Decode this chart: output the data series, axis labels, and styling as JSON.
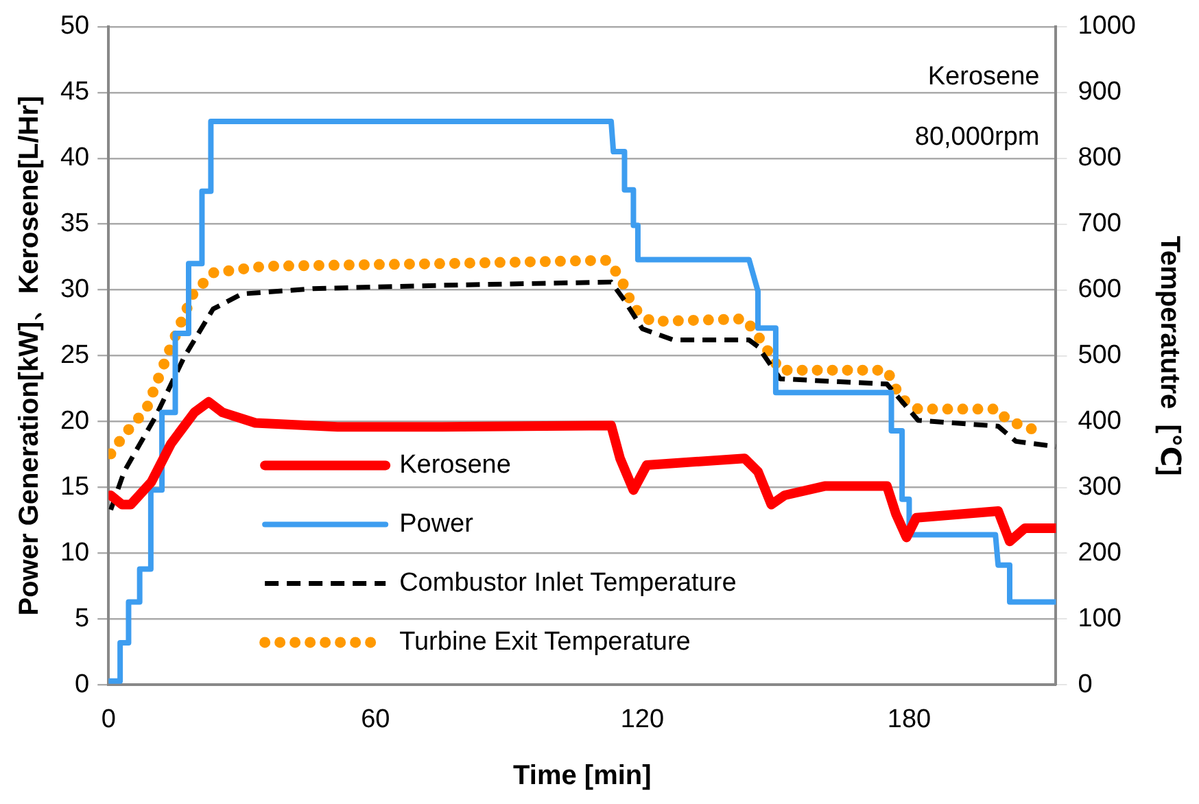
{
  "chart_data": {
    "type": "line",
    "xlabel": "Time [min]",
    "ylabel": "Power Generation[kW]、Kerosene[L/Hr]",
    "y2label": "Temperatutre  [℃]",
    "xlim": [
      0,
      213
    ],
    "xticks": [
      0,
      60,
      120,
      180
    ],
    "ylim": [
      0,
      50
    ],
    "yticks": [
      0,
      5,
      10,
      15,
      20,
      25,
      30,
      35,
      40,
      45,
      50
    ],
    "y2lim": [
      0,
      1000
    ],
    "y2ticks": [
      0,
      100,
      200,
      300,
      400,
      500,
      600,
      700,
      800,
      900,
      1000
    ],
    "grid": "y",
    "legend": "bottom left",
    "marker": "none",
    "annotations": [
      "Kerosene",
      "80,000rpm"
    ],
    "series": [
      {
        "name": "Kerosene",
        "color": "#ff0000",
        "line_style": "solid",
        "x": [
          0.5,
          3,
          5,
          9.6,
          14,
          19.3,
          22.5,
          25.6,
          33,
          51.5,
          75,
          113,
          115,
          118,
          121,
          143,
          146,
          149,
          152,
          161,
          175,
          177,
          179.4,
          181.6,
          200,
          202.6,
          206,
          213
        ],
        "values": [
          14.4,
          13.7,
          13.7,
          15.4,
          18.3,
          20.7,
          21.5,
          20.7,
          19.9,
          19.6,
          19.6,
          19.7,
          17.2,
          14.8,
          16.7,
          17.2,
          16.2,
          13.7,
          14.4,
          15.1,
          15.1,
          13,
          11.2,
          12.7,
          13.2,
          10.9,
          11.9,
          11.9
        ]
      },
      {
        "name": "Power",
        "color": "#3d9df0",
        "line_style": "solid",
        "x": [
          0.3,
          2.6,
          2.6,
          4.5,
          4.5,
          7,
          7,
          9.5,
          9.5,
          12,
          12,
          15,
          15,
          18,
          18,
          21,
          21,
          23,
          23,
          113,
          113.5,
          116,
          116,
          118,
          118,
          119,
          119,
          144,
          146,
          146,
          150,
          150,
          175,
          176,
          176,
          178.4,
          178.4,
          180,
          180,
          199.4,
          200,
          202.6,
          202.6,
          213
        ],
        "values": [
          0.3,
          0.3,
          3.2,
          3.2,
          6.3,
          6.3,
          8.8,
          8.8,
          14.8,
          14.8,
          20.7,
          20.7,
          26.7,
          26.7,
          32,
          32,
          37.5,
          37.5,
          42.8,
          42.8,
          40.5,
          40.5,
          37.6,
          37.6,
          34.9,
          34.9,
          32.3,
          32.3,
          29.9,
          27.1,
          27.1,
          22.2,
          22.2,
          22.2,
          19.3,
          19.3,
          14.1,
          14.1,
          11.4,
          11.4,
          9.1,
          9.1,
          6.3,
          6.3
        ]
      },
      {
        "name": "Combustor Inlet Temperature",
        "color": "#000000",
        "line_style": "dashed",
        "axis": "y2",
        "x": [
          0.5,
          3.5,
          10.6,
          17,
          23.5,
          30,
          46,
          75,
          113,
          116,
          120,
          127,
          144,
          146,
          151,
          175,
          182,
          200,
          204,
          213
        ],
        "values": [
          266,
          324,
          408,
          498,
          571,
          594,
          602,
          607,
          612,
          584,
          541,
          524,
          524,
          514,
          465,
          457,
          402,
          393,
          370,
          362
        ]
      },
      {
        "name": "Turbine Exit Temperature",
        "color": "#ff9900",
        "line_style": "dotted",
        "axis": "y2",
        "x": [
          0.5,
          3.5,
          8.5,
          14,
          19,
          23.5,
          35,
          75,
          112,
          115,
          118,
          122,
          143,
          145.5,
          147,
          151,
          175,
          178,
          182,
          200,
          202,
          210
        ],
        "values": [
          351,
          380,
          419,
          514,
          594,
          626,
          636,
          640,
          645,
          620,
          573,
          552,
          556,
          535,
          520,
          478,
          478,
          436,
          419,
          419,
          402,
          383
        ]
      }
    ]
  }
}
